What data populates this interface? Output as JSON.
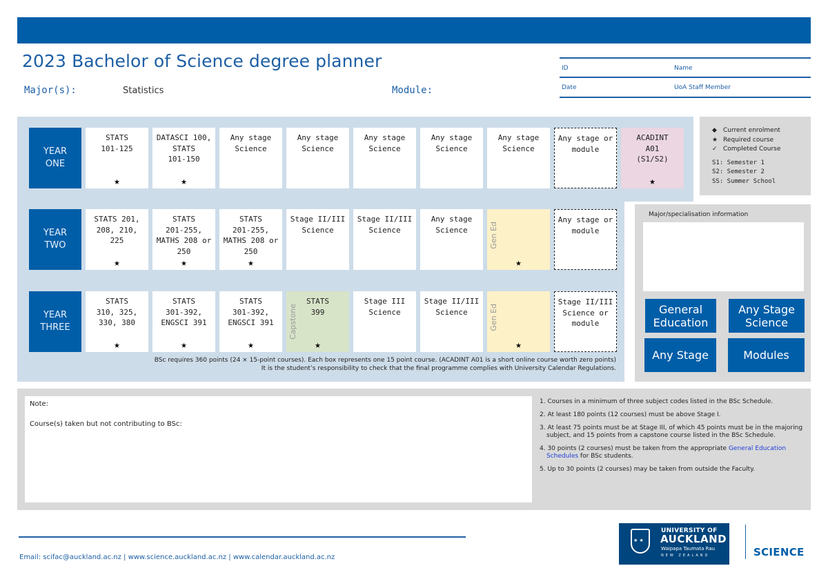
{
  "header": {
    "title": "2023 Bachelor of Science degree planner",
    "major_label": "Major(s):",
    "major_value": "Statistics",
    "module_label": "Module:",
    "id_table": {
      "id_label": "ID",
      "name_label": "Name",
      "date_label": "Date",
      "staff_label": "UoA Staff Member"
    }
  },
  "years": [
    {
      "label_line1": "YEAR",
      "label_line2": "ONE",
      "boxes": [
        {
          "text": "STATS 101-125",
          "lines": [
            "STATS",
            "101-125"
          ],
          "required": true,
          "style": "white"
        },
        {
          "text": "DATASCI 100, STATS 101-150",
          "lines": [
            "DATASCI 100,",
            "STATS",
            "101-150"
          ],
          "required": true,
          "style": "white"
        },
        {
          "text": "Any stage Science",
          "lines": [
            "Any stage",
            "Science"
          ],
          "required": false,
          "style": "white"
        },
        {
          "text": "Any stage Science",
          "lines": [
            "Any stage",
            "Science"
          ],
          "required": false,
          "style": "white"
        },
        {
          "text": "Any stage Science",
          "lines": [
            "Any stage",
            "Science"
          ],
          "required": false,
          "style": "white"
        },
        {
          "text": "Any stage Science",
          "lines": [
            "Any stage",
            "Science"
          ],
          "required": false,
          "style": "white"
        },
        {
          "text": "Any stage Science",
          "lines": [
            "Any stage",
            "Science"
          ],
          "required": false,
          "style": "white"
        },
        {
          "text": "Any stage or module",
          "lines": [
            "Any stage or",
            "module"
          ],
          "required": false,
          "style": "dashed"
        },
        {
          "text": "ACADINT A01 (S1/S2)",
          "lines": [
            "ACADINT",
            "A01",
            "(S1/S2)"
          ],
          "required": true,
          "style": "pink"
        }
      ]
    },
    {
      "label_line1": "YEAR",
      "label_line2": "TWO",
      "boxes": [
        {
          "text": "STATS 201, 208, 210, 225",
          "lines": [
            "STATS 201,",
            "208, 210, 225"
          ],
          "required": true,
          "style": "white"
        },
        {
          "text": "STATS 201-255, MATHS 208 or 250",
          "lines": [
            "STATS",
            "201-255,",
            "MATHS 208 or",
            "250"
          ],
          "required": true,
          "style": "white"
        },
        {
          "text": "STATS 201-255, MATHS 208 or 250",
          "lines": [
            "STATS",
            "201-255,",
            "MATHS 208 or",
            "250"
          ],
          "required": true,
          "style": "white"
        },
        {
          "text": "Stage II/III Science",
          "lines": [
            "Stage II/III",
            "Science"
          ],
          "required": false,
          "style": "white"
        },
        {
          "text": "Stage II/III Science",
          "lines": [
            "Stage II/III",
            "Science"
          ],
          "required": false,
          "style": "white"
        },
        {
          "text": "Any stage Science",
          "lines": [
            "Any stage",
            "Science"
          ],
          "required": false,
          "style": "white"
        },
        {
          "text": "",
          "lines": [],
          "side_label": "Gen Ed",
          "required": true,
          "style": "yellow"
        },
        {
          "text": "Any stage or module",
          "lines": [
            "Any stage or",
            "module"
          ],
          "required": false,
          "style": "dashed"
        }
      ]
    },
    {
      "label_line1": "YEAR",
      "label_line2": "THREE",
      "boxes": [
        {
          "text": "STATS 310, 325, 330, 380",
          "lines": [
            "STATS",
            "310, 325,",
            "330, 380"
          ],
          "required": true,
          "style": "white"
        },
        {
          "text": "STATS 301-392, ENGSCI 391",
          "lines": [
            "STATS",
            "301-392,",
            "ENGSCI 391"
          ],
          "required": true,
          "style": "white"
        },
        {
          "text": "STATS 301-392, ENGSCI 391",
          "lines": [
            "STATS",
            "301-392,",
            "ENGSCI 391"
          ],
          "required": true,
          "style": "white"
        },
        {
          "text": "STATS 399",
          "lines": [
            "STATS",
            "399"
          ],
          "side_label": "Capstone",
          "required": true,
          "style": "green"
        },
        {
          "text": "Stage III Science",
          "lines": [
            "Stage III",
            "Science"
          ],
          "required": false,
          "style": "white"
        },
        {
          "text": "Stage II/III Science",
          "lines": [
            "Stage II/III",
            "Science"
          ],
          "required": false,
          "style": "white"
        },
        {
          "text": "",
          "lines": [],
          "side_label": "Gen Ed",
          "required": true,
          "style": "yellow"
        },
        {
          "text": "Stage II/III Science or module",
          "lines": [
            "Stage II/III",
            "Science or",
            "module"
          ],
          "required": false,
          "style": "dashed"
        }
      ]
    }
  ],
  "star_symbol": "★",
  "planner_note": {
    "line1": "BSc requires 360 points (24 × 15-point courses). Each box represents one 15 point course. (ACADINT A01 is a short online course worth zero points)",
    "line2": "It is the student’s responsibility to check that the final programme complies with University Calendar Regulations."
  },
  "legend": {
    "items": [
      {
        "symbol": "◆",
        "label": "Current enrolment"
      },
      {
        "symbol": "★",
        "label": "Required course"
      },
      {
        "symbol": "✓",
        "label": "Completed Course"
      }
    ],
    "semesters": [
      "S1: Semester 1",
      "S2: Semester 2",
      "SS: Summer School"
    ]
  },
  "info_panel": {
    "title": "Major/specialisation information",
    "buttons": {
      "general_education": "General Education",
      "any_stage_science": "Any Stage Science",
      "any_stage": "Any Stage",
      "modules": "Modules"
    }
  },
  "notes": {
    "note_label": "Note:",
    "not_contributing_label": "Course(s) taken but not contributing to BSc:"
  },
  "rules": [
    {
      "text": "1. Courses in a minimum of three subject codes listed in the BSc Schedule."
    },
    {
      "text": "2. At least 180 points (12 courses) must be above Stage I."
    },
    {
      "text": "3. At least 75 points must be at Stage III, of which 45 points must be in the majoring subject, and 15 points from a capstone course listed in the BSc Schedule."
    },
    {
      "pre": "4. 30 points (2 courses) must be taken from the appropriate ",
      "link": "General Education Schedules",
      "post": " for BSc students."
    },
    {
      "text": "5. Up to 30 points (2 courses) may be taken from outside the Faculty."
    }
  ],
  "footer": {
    "contact": "Email: scifac@auckland.ac.nz | www.science.auckland.ac.nz | www.calendar.auckland.ac.nz",
    "logo": {
      "line1": "UNIVERSITY OF",
      "line2": "AUCKLAND",
      "line3": "Waipapa Taumata Rau",
      "line4": "NEW ZEALAND"
    },
    "faculty": "SCIENCE"
  },
  "colors": {
    "brand_blue": "#005ea8",
    "planner_bg": "#cddce9",
    "panel_gray": "#d9d9d9",
    "acadint_pink": "#ebd6e1",
    "gen_ed_yellow": "#fdf1c8",
    "capstone_green": "#d8e4c8"
  }
}
